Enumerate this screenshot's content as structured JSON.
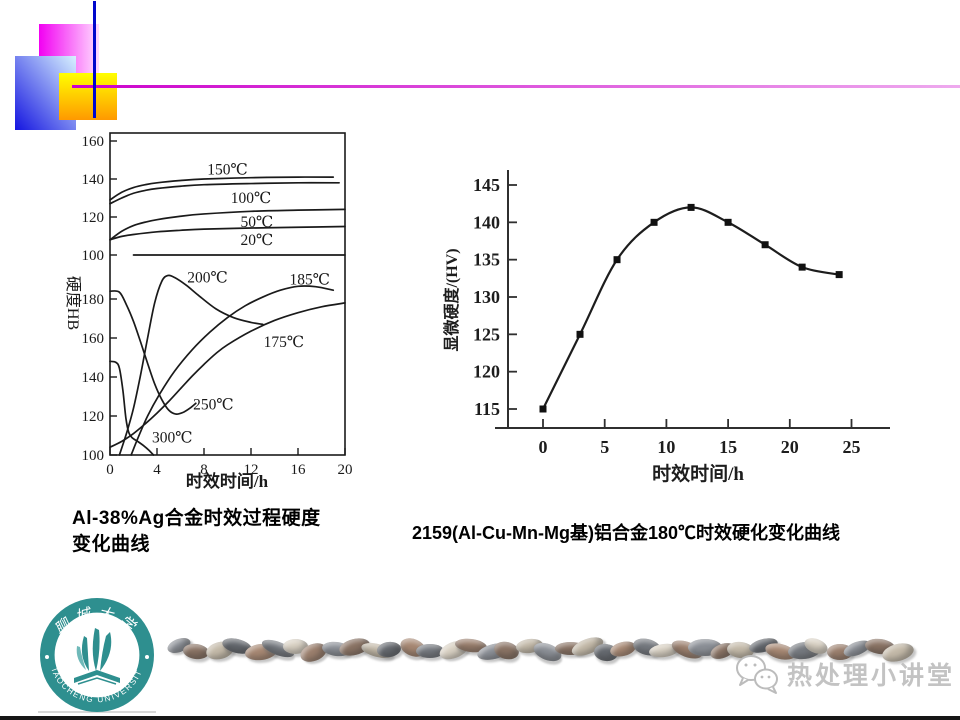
{
  "slide": {
    "background": "#ffffff"
  },
  "decoration": {
    "magenta_square": {
      "from": "#f200f2",
      "to": "#ffddff"
    },
    "blue_square": {
      "from": "#d8f2ff",
      "to": "#1414e0"
    },
    "yellow_square": {
      "from": "#ffff00",
      "to": "#ff9900"
    },
    "vertical_line_color": "#0008cc",
    "horizontal_line": {
      "from": "#cc00cc",
      "to": "#eeaaee"
    }
  },
  "captions": {
    "left": {
      "line1": "Al-38%Ag合金时效过程硬度",
      "line2": "变化曲线"
    },
    "right": {
      "text": "2159(Al-Cu-Mn-Mg基)铝合金180℃时效硬化变化曲线"
    }
  },
  "footer": {
    "logo": {
      "top_text": "聊城大学",
      "ring_text": "LIAOCHENG UNIVERSITY",
      "color": "#2e8f8f"
    },
    "watermark": "热处理小讲堂",
    "pebble_colors": [
      "#8b8f96",
      "#9b7f6d",
      "#d9d1c3",
      "#75797f",
      "#a78873",
      "#65696f",
      "#c4baa9",
      "#8a7364"
    ]
  },
  "chart_data": [
    {
      "type": "line",
      "figure": "left",
      "title": "Al-38%Ag合金时效过程硬度变化曲线",
      "xlabel": "时效时间/h",
      "ylabel": "硬度HB",
      "xlim": [
        0,
        20
      ],
      "x_ticks": [
        0,
        4,
        8,
        12,
        16,
        20
      ],
      "grid": false,
      "sections": {
        "upper": {
          "ylim": [
            100,
            160
          ],
          "y_ticks": [
            160,
            140,
            120,
            100
          ],
          "series": [
            {
              "name": "150℃",
              "points": [
                [
                  0,
                  129
                ],
                [
                  1,
                  133
                ],
                [
                  2,
                  135.5
                ],
                [
                  3,
                  137
                ],
                [
                  4,
                  138
                ],
                [
                  6,
                  139.2
                ],
                [
                  8,
                  140
                ],
                [
                  12,
                  140.7
                ],
                [
                  16,
                  141
                ],
                [
                  19,
                  141
                ]
              ]
            },
            {
              "name": "100℃",
              "points": [
                [
                  0,
                  127
                ],
                [
                  1,
                  130
                ],
                [
                  2,
                  132.5
                ],
                [
                  3,
                  134
                ],
                [
                  4,
                  135
                ],
                [
                  6,
                  136.2
                ],
                [
                  8,
                  137
                ],
                [
                  12,
                  137.6
                ],
                [
                  16,
                  138
                ],
                [
                  19.5,
                  138
                ]
              ]
            },
            {
              "name": "50℃",
              "points": [
                [
                  0,
                  108
                ],
                [
                  1,
                  112.5
                ],
                [
                  2,
                  115.5
                ],
                [
                  3,
                  117.3
                ],
                [
                  4,
                  118.6
                ],
                [
                  6,
                  120.4
                ],
                [
                  8,
                  121.6
                ],
                [
                  12,
                  123
                ],
                [
                  16,
                  123.6
                ],
                [
                  20,
                  124
                ]
              ]
            },
            {
              "name": "20℃",
              "points": [
                [
                  0,
                  108
                ],
                [
                  1,
                  109.8
                ],
                [
                  2,
                  110.8
                ],
                [
                  4,
                  112.2
                ],
                [
                  6,
                  113
                ],
                [
                  8,
                  113.6
                ],
                [
                  12,
                  114.2
                ],
                [
                  16,
                  114.6
                ],
                [
                  20,
                  115
                ]
              ]
            },
            {
              "name": "as-quenched-baseline",
              "straight": true,
              "points": [
                [
                  2,
                  100
                ],
                [
                  20,
                  100
                ]
              ]
            }
          ]
        },
        "lower": {
          "ylim": [
            100,
            200
          ],
          "y_ticks": [
            180,
            160,
            140,
            120,
            100
          ],
          "series": [
            {
              "name": "200℃",
              "points": [
                [
                  0.8,
                  100
                ],
                [
                  1.4,
                  111
                ],
                [
                  2,
                  124
                ],
                [
                  2.6,
                  141
                ],
                [
                  3.2,
                  160
                ],
                [
                  3.8,
                  178
                ],
                [
                  4.4,
                  189
                ],
                [
                  4.9,
                  192
                ],
                [
                  5.5,
                  191
                ],
                [
                  6.5,
                  187
                ],
                [
                  7.5,
                  182
                ],
                [
                  9,
                  175
                ],
                [
                  10.5,
                  170.5
                ],
                [
                  12,
                  168
                ],
                [
                  13,
                  167
                ]
              ]
            },
            {
              "name": "185℃",
              "points": [
                [
                  1.8,
                  100
                ],
                [
                  2.4,
                  109
                ],
                [
                  3.2,
                  120
                ],
                [
                  4.2,
                  131
                ],
                [
                  5.5,
                  143
                ],
                [
                  7,
                  154
                ],
                [
                  8.5,
                  163
                ],
                [
                  10,
                  170.5
                ],
                [
                  11.5,
                  176.5
                ],
                [
                  13,
                  181
                ],
                [
                  14.5,
                  184.5
                ],
                [
                  16,
                  186.5
                ],
                [
                  17.5,
                  186.3
                ],
                [
                  19,
                  184.5
                ]
              ]
            },
            {
              "name": "175℃",
              "points": [
                [
                  0,
                  104
                ],
                [
                  1,
                  107
                ],
                [
                  2,
                  111
                ],
                [
                  3,
                  116
                ],
                [
                  4,
                  121.5
                ],
                [
                  5,
                  127.5
                ],
                [
                  6,
                  134
                ],
                [
                  7,
                  140.5
                ],
                [
                  8,
                  146.5
                ],
                [
                  9,
                  152
                ],
                [
                  10,
                  156.5
                ],
                [
                  12,
                  163.5
                ],
                [
                  14,
                  169
                ],
                [
                  16,
                  173
                ],
                [
                  18,
                  176
                ],
                [
                  20,
                  178
                ]
              ]
            },
            {
              "name": "250℃",
              "points": [
                [
                  0,
                  184
                ],
                [
                  0.8,
                  183.5
                ],
                [
                  1.4,
                  177
                ],
                [
                  2,
                  168.5
                ],
                [
                  2.6,
                  158
                ],
                [
                  3.2,
                  147
                ],
                [
                  3.8,
                  136.5
                ],
                [
                  4.4,
                  128.5
                ],
                [
                  5,
                  123
                ],
                [
                  5.6,
                  121
                ],
                [
                  6.2,
                  121.8
                ],
                [
                  6.8,
                  124
                ],
                [
                  7.3,
                  126.5
                ]
              ]
            },
            {
              "name": "300℃",
              "points": [
                [
                  0,
                  148
                ],
                [
                  0.5,
                  147.5
                ],
                [
                  0.8,
                  144.5
                ],
                [
                  1.1,
                  133
                ],
                [
                  1.35,
                  119
                ],
                [
                  1.6,
                  111.5
                ],
                [
                  1.9,
                  108.8
                ],
                [
                  2.4,
                  106.8
                ],
                [
                  2.9,
                  104.6
                ],
                [
                  3.3,
                  102.5
                ],
                [
                  3.7,
                  100
                ]
              ]
            }
          ]
        }
      },
      "curve_labels": [
        {
          "text": "150℃",
          "section": "upper",
          "at": [
            10,
            145
          ]
        },
        {
          "text": "100℃",
          "section": "upper",
          "at": [
            12,
            130
          ]
        },
        {
          "text": "50℃",
          "section": "upper",
          "at": [
            12.5,
            117.5
          ]
        },
        {
          "text": "20℃",
          "section": "upper",
          "at": [
            12.5,
            108
          ]
        },
        {
          "text": "200℃",
          "section": "lower",
          "at": [
            8.3,
            191
          ]
        },
        {
          "text": "185℃",
          "section": "lower",
          "at": [
            17,
            190
          ]
        },
        {
          "text": "175℃",
          "section": "lower",
          "at": [
            14.8,
            158
          ]
        },
        {
          "text": "250℃",
          "section": "lower",
          "at": [
            8.8,
            126
          ]
        },
        {
          "text": "300℃",
          "section": "lower",
          "at": [
            5.3,
            109
          ]
        }
      ]
    },
    {
      "type": "line",
      "figure": "right",
      "title": "2159(Al-Cu-Mn-Mg基)铝合金180℃时效硬化变化曲线",
      "xlabel": "时效时间/h",
      "ylabel": "显微硬度/(HV)",
      "xlim": [
        0,
        27
      ],
      "x_ticks": [
        0,
        5,
        10,
        15,
        20,
        25
      ],
      "ylim": [
        113,
        146
      ],
      "y_ticks": [
        145,
        140,
        135,
        130,
        125,
        120,
        115
      ],
      "grid": false,
      "series": [
        {
          "name": "180℃时效硬度",
          "marker": "square",
          "x": [
            0,
            3,
            6,
            9,
            12,
            15,
            18,
            21,
            24
          ],
          "y": [
            115,
            125,
            135,
            140,
            142,
            140,
            137,
            134,
            133
          ]
        }
      ]
    }
  ]
}
